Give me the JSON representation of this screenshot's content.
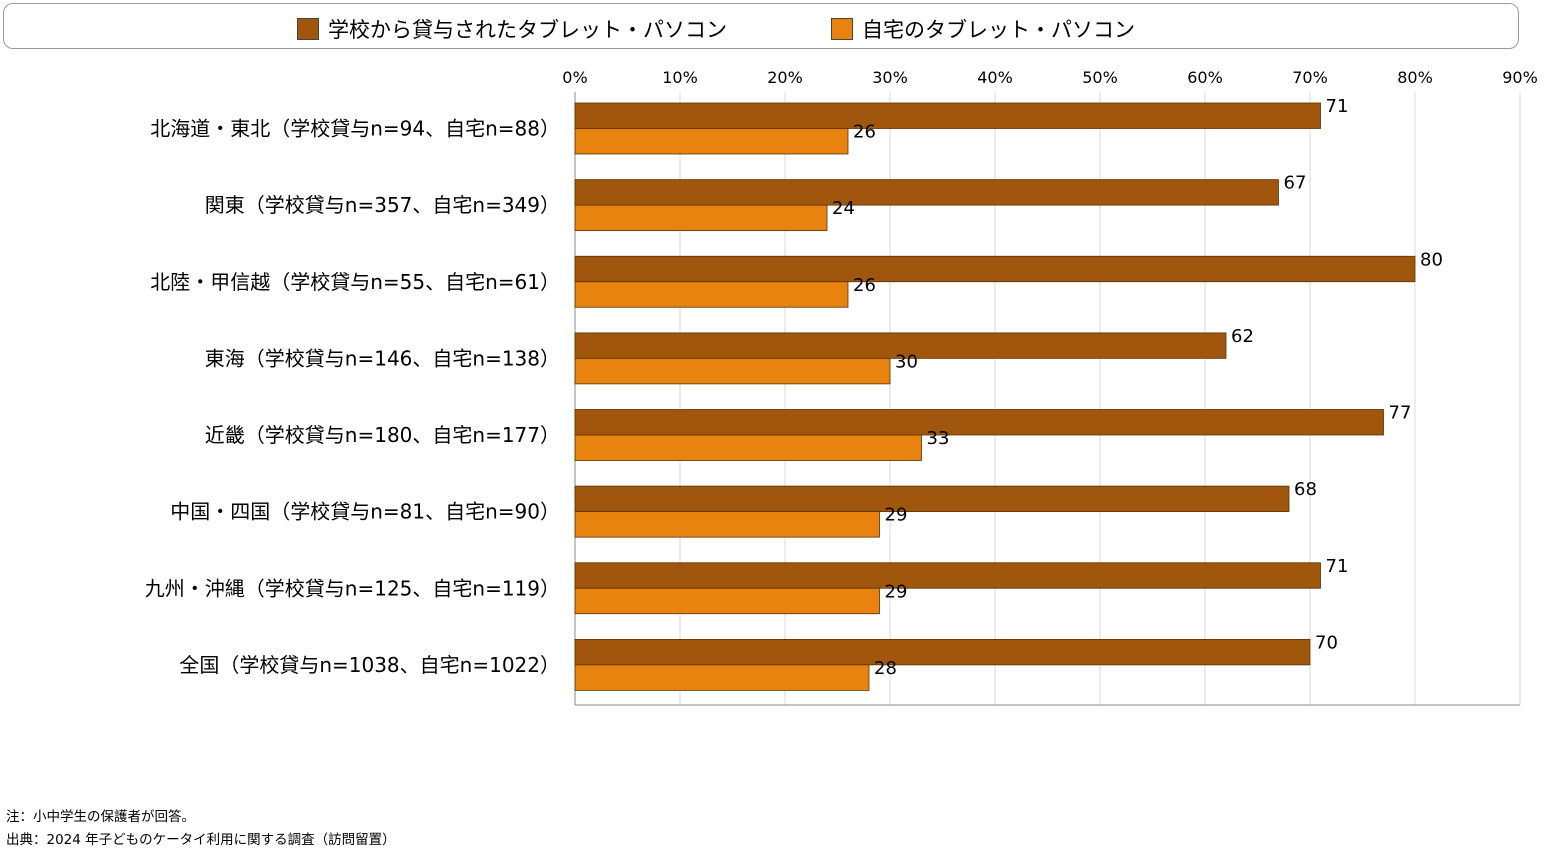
{
  "chart_data": {
    "type": "bar",
    "orientation": "horizontal",
    "categories": [
      "北海道・東北（学校貸与n=94、自宅n=88）",
      "関東（学校貸与n=357、自宅n=349）",
      "北陸・甲信越（学校貸与n=55、自宅n=61）",
      "東海（学校貸与n=146、自宅n=138）",
      "近畿（学校貸与n=180、自宅n=177）",
      "中国・四国（学校貸与n=81、自宅n=90）",
      "九州・沖縄（学校貸与n=125、自宅n=119）",
      "全国（学校貸与n=1038、自宅n=1022）"
    ],
    "series": [
      {
        "name": "学校から貸与されたタブレット・パソコン",
        "color": "#A0560C",
        "values": [
          71,
          67,
          80,
          62,
          77,
          68,
          71,
          70
        ]
      },
      {
        "name": "自宅のタブレット・パソコン",
        "color": "#E8830F",
        "values": [
          26,
          24,
          26,
          30,
          33,
          29,
          29,
          28
        ]
      }
    ],
    "xlim": [
      0,
      90
    ],
    "xticks": [
      "0%",
      "10%",
      "20%",
      "30%",
      "40%",
      "50%",
      "60%",
      "70%",
      "80%",
      "90%"
    ],
    "grid": true,
    "legend": "top"
  },
  "notes": {
    "note": "注：小中学生の保護者が回答。",
    "source": "出典：2024 年子どものケータイ利用に関する調査（訪問留置）"
  }
}
